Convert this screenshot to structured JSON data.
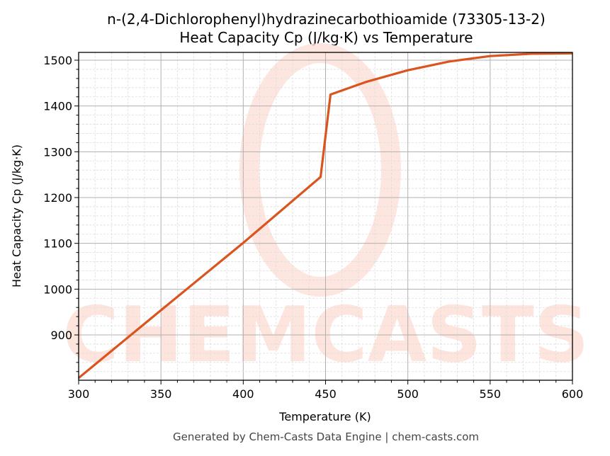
{
  "title_line1": "n-(2,4-Dichlorophenyl)hydrazinecarbothioamide (73305-13-2)",
  "title_line2": "Heat Capacity Cp (J/kg·K) vs Temperature",
  "footer": "Generated by Chem-Casts Data Engine | chem-casts.com",
  "watermark": "CHEMCASTS",
  "colors": {
    "line": "#d9541e",
    "watermark": "#fde0d8",
    "grid_major": "#b0b0b0",
    "grid_minor": "#dddddd"
  },
  "chart_data": {
    "type": "line",
    "title": "n-(2,4-Dichlorophenyl)hydrazinecarbothioamide (73305-13-2)\nHeat Capacity Cp (J/kg·K) vs Temperature",
    "xlabel": "Temperature (K)",
    "ylabel": "Heat Capacity Cp (J/kg·K)",
    "xlim": [
      300,
      600
    ],
    "ylim": [
      802,
      1516
    ],
    "xticks": [
      300,
      350,
      400,
      450,
      500,
      550,
      600
    ],
    "yticks": [
      900,
      1000,
      1100,
      1200,
      1300,
      1400,
      1500
    ],
    "grid": true,
    "minor_grid": true,
    "series": [
      {
        "name": "Cp",
        "x": [
          300,
          350,
          400,
          447,
          453,
          475,
          500,
          525,
          550,
          575,
          600
        ],
        "y": [
          806,
          954,
          1101,
          1245,
          1425,
          1453,
          1478,
          1497,
          1509,
          1514,
          1515
        ]
      }
    ]
  }
}
